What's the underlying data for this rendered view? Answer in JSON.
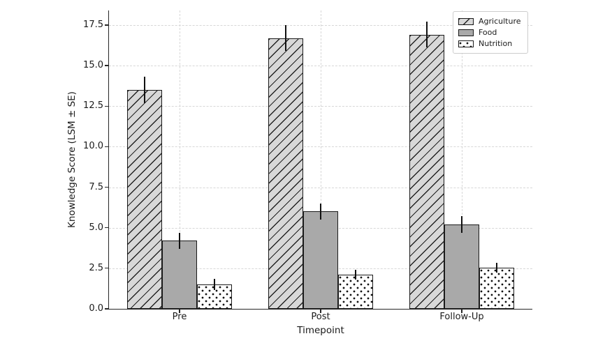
{
  "chart_data": {
    "type": "bar",
    "title": "",
    "xlabel": "Timepoint",
    "ylabel": "Knowledge Score (LSM ± SE)",
    "categories": [
      "Pre",
      "Post",
      "Follow-Up"
    ],
    "series": [
      {
        "name": "Agriculture",
        "pattern": "hatch",
        "fill": "#d8d8d8",
        "values": [
          13.5,
          16.7,
          16.9
        ],
        "errors": [
          0.8,
          0.8,
          0.8
        ]
      },
      {
        "name": "Food",
        "pattern": "solid",
        "fill": "#a9a9a9",
        "values": [
          4.2,
          6.0,
          5.2
        ],
        "errors": [
          0.5,
          0.5,
          0.5
        ]
      },
      {
        "name": "Nutrition",
        "pattern": "dots",
        "fill": "#ffffff",
        "values": [
          1.5,
          2.1,
          2.55
        ],
        "errors": [
          0.35,
          0.3,
          0.3
        ]
      }
    ],
    "yticks": [
      0.0,
      2.5,
      5.0,
      7.5,
      10.0,
      12.5,
      15.0,
      17.5
    ],
    "ylim": [
      0,
      18.4
    ],
    "grid": true,
    "grid_style": "dashed",
    "grid_color": "#d7d7d7",
    "axis_color": "#262626",
    "error_bar_color": "#111111",
    "legend_position": "upper-right",
    "error_bar_caps": false
  }
}
